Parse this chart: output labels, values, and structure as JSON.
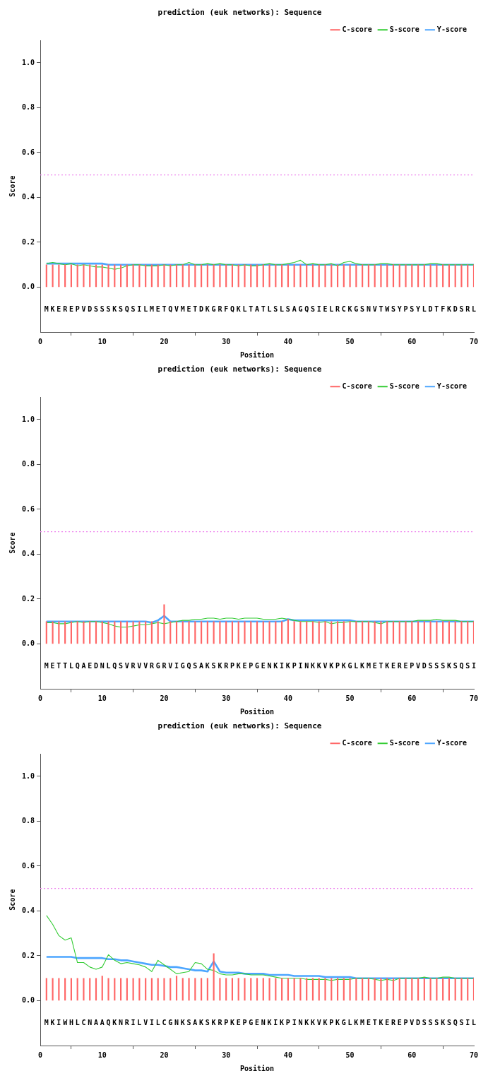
{
  "chart_data": [
    {
      "type": "line",
      "title": "prediction (euk networks): Sequence",
      "xlabel": "Position",
      "ylabel": "Score",
      "legend": "top right",
      "grid": false,
      "xlim": [
        0,
        70
      ],
      "xticks": [
        0,
        10,
        20,
        30,
        40,
        50,
        60,
        70
      ],
      "ylim": [
        -0.2,
        1.1
      ],
      "yticks": [
        {
          "value": 0,
          "label": "0.0"
        },
        {
          "value": 0.2,
          "label": "0.2"
        },
        {
          "value": 0.4,
          "label": "0.4"
        },
        {
          "value": 0.6,
          "label": "0.6"
        },
        {
          "value": 0.8,
          "label": "0.8"
        },
        {
          "value": 1,
          "label": "1.0"
        }
      ],
      "ref_lines": [
        {
          "axis": "y",
          "value": 0.5,
          "color": "#ee82ee",
          "line_style": "dotted"
        }
      ],
      "annotations": [
        "MKEREPVDSSSKSQSILMETQVMETDKGRFQKLTATLSLSAGQSIELRCKGSNVTWSYPSYLDTFKDSRL"
      ],
      "x": [
        1,
        2,
        3,
        4,
        5,
        6,
        7,
        8,
        9,
        10,
        11,
        12,
        13,
        14,
        15,
        16,
        17,
        18,
        19,
        20,
        21,
        22,
        23,
        24,
        25,
        26,
        27,
        28,
        29,
        30,
        31,
        32,
        33,
        34,
        35,
        36,
        37,
        38,
        39,
        40,
        41,
        42,
        43,
        44,
        45,
        46,
        47,
        48,
        49,
        50,
        51,
        52,
        53,
        54,
        55,
        56,
        57,
        58,
        59,
        60,
        61,
        62,
        63,
        64,
        65,
        66,
        67,
        68,
        69,
        70
      ],
      "series": [
        {
          "name": "C-score",
          "type": "bar",
          "color": "#ff6666",
          "values": [
            0.1,
            0.1,
            0.1,
            0.1,
            0.1,
            0.1,
            0.1,
            0.1,
            0.1,
            0.1,
            0.1,
            0.1,
            0.1,
            0.1,
            0.1,
            0.1,
            0.1,
            0.1,
            0.1,
            0.1,
            0.1,
            0.1,
            0.1,
            0.1,
            0.1,
            0.1,
            0.1,
            0.1,
            0.1,
            0.1,
            0.1,
            0.1,
            0.1,
            0.1,
            0.1,
            0.1,
            0.1,
            0.1,
            0.1,
            0.1,
            0.1,
            0.1,
            0.1,
            0.1,
            0.1,
            0.1,
            0.1,
            0.1,
            0.1,
            0.1,
            0.1,
            0.1,
            0.1,
            0.1,
            0.1,
            0.1,
            0.1,
            0.1,
            0.1,
            0.1,
            0.1,
            0.1,
            0.1,
            0.1,
            0.1,
            0.1,
            0.1,
            0.1,
            0.1,
            0.1
          ]
        },
        {
          "name": "S-score",
          "color": "#33cc33",
          "values": [
            0.105,
            0.11,
            0.105,
            0.1,
            0.105,
            0.095,
            0.1,
            0.095,
            0.09,
            0.09,
            0.085,
            0.08,
            0.085,
            0.095,
            0.1,
            0.1,
            0.095,
            0.095,
            0.095,
            0.1,
            0.095,
            0.1,
            0.1,
            0.11,
            0.1,
            0.1,
            0.105,
            0.1,
            0.105,
            0.1,
            0.1,
            0.095,
            0.1,
            0.095,
            0.095,
            0.1,
            0.105,
            0.1,
            0.1,
            0.105,
            0.11,
            0.12,
            0.1,
            0.105,
            0.1,
            0.1,
            0.105,
            0.095,
            0.11,
            0.115,
            0.105,
            0.1,
            0.1,
            0.1,
            0.105,
            0.105,
            0.1,
            0.1,
            0.1,
            0.1,
            0.1,
            0.1,
            0.105,
            0.105,
            0.1,
            0.1,
            0.1,
            0.1,
            0.1,
            0.1
          ]
        },
        {
          "name": "Y-score",
          "color": "#4da6ff",
          "values": [
            0.105,
            0.105,
            0.105,
            0.105,
            0.105,
            0.105,
            0.105,
            0.105,
            0.105,
            0.105,
            0.1,
            0.1,
            0.1,
            0.1,
            0.1,
            0.1,
            0.1,
            0.1,
            0.1,
            0.1,
            0.1,
            0.1,
            0.1,
            0.1,
            0.1,
            0.1,
            0.1,
            0.1,
            0.1,
            0.1,
            0.1,
            0.1,
            0.1,
            0.1,
            0.1,
            0.1,
            0.1,
            0.1,
            0.1,
            0.1,
            0.1,
            0.1,
            0.1,
            0.1,
            0.1,
            0.1,
            0.1,
            0.1,
            0.1,
            0.1,
            0.1,
            0.1,
            0.1,
            0.1,
            0.1,
            0.1,
            0.1,
            0.1,
            0.1,
            0.1,
            0.1,
            0.1,
            0.1,
            0.1,
            0.1,
            0.1,
            0.1,
            0.1,
            0.1,
            0.1
          ]
        }
      ]
    },
    {
      "type": "line",
      "title": "prediction (euk networks): Sequence",
      "xlabel": "Position",
      "ylabel": "Score",
      "legend": "top right",
      "grid": false,
      "xlim": [
        0,
        70
      ],
      "xticks": [
        0,
        10,
        20,
        30,
        40,
        50,
        60,
        70
      ],
      "ylim": [
        -0.2,
        1.1
      ],
      "yticks": [
        {
          "value": 0,
          "label": "0.0"
        },
        {
          "value": 0.2,
          "label": "0.2"
        },
        {
          "value": 0.4,
          "label": "0.4"
        },
        {
          "value": 0.6,
          "label": "0.6"
        },
        {
          "value": 0.8,
          "label": "0.8"
        },
        {
          "value": 1,
          "label": "1.0"
        }
      ],
      "ref_lines": [
        {
          "axis": "y",
          "value": 0.5,
          "color": "#ee82ee",
          "line_style": "dotted"
        }
      ],
      "annotations": [
        "METTLQAEDNLQSVRVVRGRVIGQSAKSKRPKEPGENKIKPINKKVKPKGLKMETKEREPVDSSSKSQSI"
      ],
      "x": [
        1,
        2,
        3,
        4,
        5,
        6,
        7,
        8,
        9,
        10,
        11,
        12,
        13,
        14,
        15,
        16,
        17,
        18,
        19,
        20,
        21,
        22,
        23,
        24,
        25,
        26,
        27,
        28,
        29,
        30,
        31,
        32,
        33,
        34,
        35,
        36,
        37,
        38,
        39,
        40,
        41,
        42,
        43,
        44,
        45,
        46,
        47,
        48,
        49,
        50,
        51,
        52,
        53,
        54,
        55,
        56,
        57,
        58,
        59,
        60,
        61,
        62,
        63,
        64,
        65,
        66,
        67,
        68,
        69,
        70
      ],
      "series": [
        {
          "name": "C-score",
          "type": "bar",
          "color": "#ff6666",
          "values": [
            0.1,
            0.1,
            0.1,
            0.1,
            0.1,
            0.1,
            0.1,
            0.1,
            0.1,
            0.1,
            0.1,
            0.1,
            0.1,
            0.1,
            0.1,
            0.1,
            0.1,
            0.1,
            0.1,
            0.175,
            0.1,
            0.1,
            0.1,
            0.1,
            0.1,
            0.1,
            0.1,
            0.1,
            0.1,
            0.1,
            0.1,
            0.1,
            0.1,
            0.1,
            0.1,
            0.1,
            0.1,
            0.1,
            0.1,
            0.11,
            0.1,
            0.1,
            0.1,
            0.1,
            0.1,
            0.1,
            0.1,
            0.1,
            0.1,
            0.1,
            0.1,
            0.1,
            0.1,
            0.1,
            0.1,
            0.1,
            0.1,
            0.1,
            0.1,
            0.1,
            0.1,
            0.1,
            0.1,
            0.1,
            0.1,
            0.1,
            0.1,
            0.1,
            0.1,
            0.1
          ]
        },
        {
          "name": "S-score",
          "color": "#33cc33",
          "values": [
            0.095,
            0.095,
            0.09,
            0.09,
            0.095,
            0.1,
            0.095,
            0.1,
            0.1,
            0.095,
            0.09,
            0.08,
            0.075,
            0.075,
            0.08,
            0.085,
            0.085,
            0.09,
            0.095,
            0.09,
            0.095,
            0.1,
            0.105,
            0.105,
            0.11,
            0.11,
            0.115,
            0.115,
            0.11,
            0.115,
            0.115,
            0.11,
            0.115,
            0.115,
            0.115,
            0.11,
            0.11,
            0.11,
            0.115,
            0.11,
            0.105,
            0.1,
            0.1,
            0.1,
            0.095,
            0.1,
            0.09,
            0.095,
            0.095,
            0.1,
            0.1,
            0.1,
            0.1,
            0.095,
            0.09,
            0.1,
            0.1,
            0.1,
            0.1,
            0.1,
            0.105,
            0.105,
            0.105,
            0.11,
            0.105,
            0.105,
            0.105,
            0.1,
            0.1,
            0.1
          ]
        },
        {
          "name": "Y-score",
          "color": "#4da6ff",
          "values": [
            0.1,
            0.1,
            0.1,
            0.1,
            0.1,
            0.1,
            0.1,
            0.1,
            0.1,
            0.1,
            0.1,
            0.1,
            0.1,
            0.1,
            0.1,
            0.1,
            0.1,
            0.095,
            0.105,
            0.125,
            0.1,
            0.1,
            0.1,
            0.1,
            0.1,
            0.1,
            0.1,
            0.1,
            0.1,
            0.1,
            0.1,
            0.1,
            0.1,
            0.1,
            0.1,
            0.1,
            0.1,
            0.1,
            0.1,
            0.11,
            0.105,
            0.105,
            0.105,
            0.105,
            0.105,
            0.105,
            0.105,
            0.105,
            0.105,
            0.105,
            0.1,
            0.1,
            0.1,
            0.1,
            0.1,
            0.1,
            0.1,
            0.1,
            0.1,
            0.1,
            0.1,
            0.1,
            0.1,
            0.1,
            0.1,
            0.1,
            0.1,
            0.1,
            0.1,
            0.1
          ]
        }
      ]
    },
    {
      "type": "line",
      "title": "prediction (euk networks): Sequence",
      "xlabel": "Position",
      "ylabel": "Score",
      "legend": "top right",
      "grid": false,
      "xlim": [
        0,
        70
      ],
      "xticks": [
        0,
        10,
        20,
        30,
        40,
        50,
        60,
        70
      ],
      "ylim": [
        -0.2,
        1.1
      ],
      "yticks": [
        {
          "value": 0,
          "label": "0.0"
        },
        {
          "value": 0.2,
          "label": "0.2"
        },
        {
          "value": 0.4,
          "label": "0.4"
        },
        {
          "value": 0.6,
          "label": "0.6"
        },
        {
          "value": 0.8,
          "label": "0.8"
        },
        {
          "value": 1,
          "label": "1.0"
        }
      ],
      "ref_lines": [
        {
          "axis": "y",
          "value": 0.5,
          "color": "#ee82ee",
          "line_style": "dotted"
        }
      ],
      "annotations": [
        "MKIWHLCNAAQKNRILVILCGNKSAKSKRPKEPGENKIKPINKKVKPKGLKMETKEREPVDSSSKSQSIL"
      ],
      "x": [
        1,
        2,
        3,
        4,
        5,
        6,
        7,
        8,
        9,
        10,
        11,
        12,
        13,
        14,
        15,
        16,
        17,
        18,
        19,
        20,
        21,
        22,
        23,
        24,
        25,
        26,
        27,
        28,
        29,
        30,
        31,
        32,
        33,
        34,
        35,
        36,
        37,
        38,
        39,
        40,
        41,
        42,
        43,
        44,
        45,
        46,
        47,
        48,
        49,
        50,
        51,
        52,
        53,
        54,
        55,
        56,
        57,
        58,
        59,
        60,
        61,
        62,
        63,
        64,
        65,
        66,
        67,
        68,
        69,
        70
      ],
      "series": [
        {
          "name": "C-score",
          "type": "bar",
          "color": "#ff6666",
          "values": [
            0.1,
            0.1,
            0.1,
            0.1,
            0.1,
            0.1,
            0.1,
            0.1,
            0.1,
            0.11,
            0.1,
            0.1,
            0.1,
            0.1,
            0.1,
            0.1,
            0.1,
            0.1,
            0.1,
            0.1,
            0.1,
            0.11,
            0.1,
            0.1,
            0.1,
            0.1,
            0.1,
            0.21,
            0.1,
            0.1,
            0.1,
            0.1,
            0.1,
            0.1,
            0.1,
            0.1,
            0.1,
            0.1,
            0.1,
            0.1,
            0.1,
            0.1,
            0.1,
            0.1,
            0.1,
            0.1,
            0.1,
            0.1,
            0.1,
            0.1,
            0.1,
            0.1,
            0.1,
            0.1,
            0.1,
            0.1,
            0.1,
            0.1,
            0.1,
            0.1,
            0.1,
            0.1,
            0.1,
            0.1,
            0.1,
            0.1,
            0.1,
            0.1,
            0.1,
            0.1
          ]
        },
        {
          "name": "S-score",
          "color": "#33cc33",
          "values": [
            0.38,
            0.34,
            0.29,
            0.27,
            0.28,
            0.17,
            0.17,
            0.15,
            0.14,
            0.15,
            0.205,
            0.18,
            0.165,
            0.17,
            0.165,
            0.16,
            0.15,
            0.13,
            0.18,
            0.16,
            0.14,
            0.12,
            0.125,
            0.13,
            0.17,
            0.165,
            0.14,
            0.135,
            0.12,
            0.115,
            0.115,
            0.12,
            0.12,
            0.115,
            0.115,
            0.115,
            0.11,
            0.105,
            0.1,
            0.1,
            0.1,
            0.1,
            0.095,
            0.095,
            0.095,
            0.095,
            0.09,
            0.095,
            0.095,
            0.095,
            0.1,
            0.1,
            0.1,
            0.095,
            0.09,
            0.095,
            0.09,
            0.1,
            0.1,
            0.1,
            0.1,
            0.105,
            0.1,
            0.1,
            0.105,
            0.105,
            0.1,
            0.1,
            0.1,
            0.1
          ]
        },
        {
          "name": "Y-score",
          "color": "#4da6ff",
          "values": [
            0.195,
            0.195,
            0.195,
            0.195,
            0.195,
            0.19,
            0.19,
            0.19,
            0.19,
            0.19,
            0.185,
            0.185,
            0.18,
            0.18,
            0.175,
            0.17,
            0.165,
            0.16,
            0.16,
            0.155,
            0.15,
            0.15,
            0.145,
            0.14,
            0.135,
            0.135,
            0.13,
            0.175,
            0.13,
            0.125,
            0.125,
            0.125,
            0.12,
            0.12,
            0.12,
            0.12,
            0.115,
            0.115,
            0.115,
            0.115,
            0.11,
            0.11,
            0.11,
            0.11,
            0.11,
            0.105,
            0.105,
            0.105,
            0.105,
            0.105,
            0.1,
            0.1,
            0.1,
            0.1,
            0.1,
            0.1,
            0.1,
            0.1,
            0.1,
            0.1,
            0.1,
            0.1,
            0.1,
            0.1,
            0.1,
            0.1,
            0.1,
            0.1,
            0.1,
            0.1
          ]
        }
      ]
    }
  ]
}
